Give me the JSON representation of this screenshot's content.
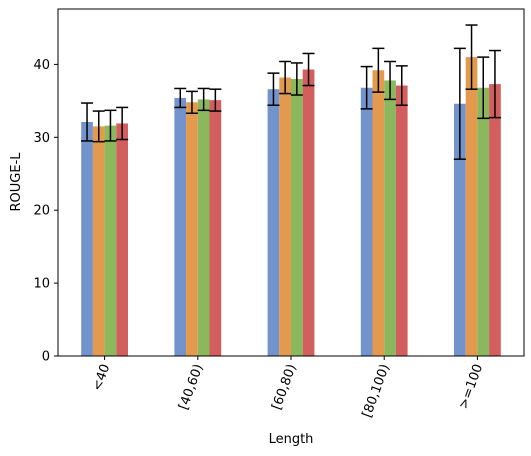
{
  "chart_data": {
    "type": "bar",
    "xlabel": "Length",
    "ylabel": "ROUGE-L",
    "categories": [
      "<40",
      "[40,60)",
      "[60,80)",
      "[80,100)",
      ">=100"
    ],
    "ylim": [
      0,
      47.6
    ],
    "yticks": [
      0,
      10,
      20,
      30,
      40
    ],
    "grid": false,
    "legend": "none",
    "series": [
      {
        "color": "#7393cd",
        "values": [
          32.1,
          35.4,
          36.6,
          36.8,
          34.6
        ],
        "errors": [
          2.6,
          1.3,
          2.2,
          2.9,
          7.6
        ]
      },
      {
        "color": "#e39a4e",
        "values": [
          31.5,
          34.8,
          38.2,
          39.2,
          41.0
        ],
        "errors": [
          2.1,
          1.5,
          2.2,
          3.0,
          4.4
        ]
      },
      {
        "color": "#8bb85d",
        "values": [
          31.6,
          35.2,
          38.0,
          37.8,
          36.8
        ],
        "errors": [
          2.1,
          1.5,
          2.2,
          2.6,
          4.2
        ]
      },
      {
        "color": "#d35e5e",
        "values": [
          31.9,
          35.1,
          39.3,
          37.1,
          37.3
        ],
        "errors": [
          2.2,
          1.5,
          2.2,
          2.7,
          4.6
        ]
      }
    ]
  }
}
